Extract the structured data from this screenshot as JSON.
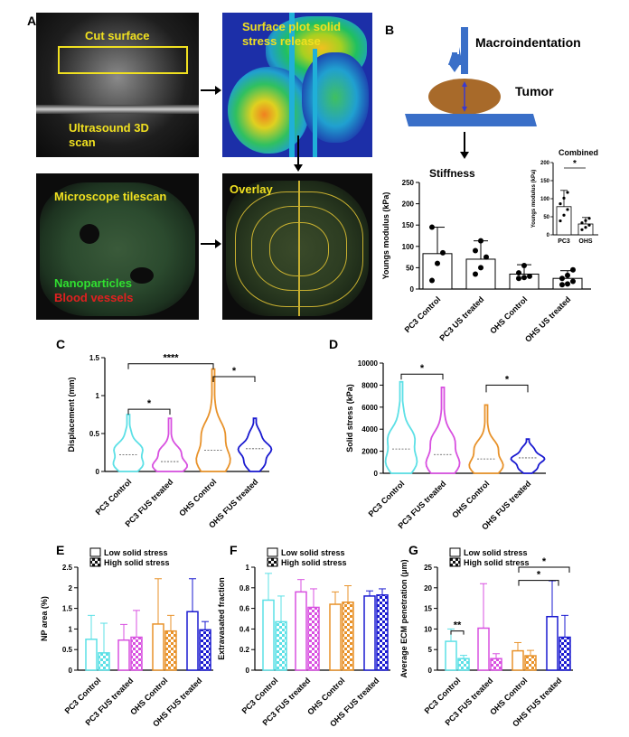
{
  "panelA": {
    "letter": "A",
    "ultrasound": {
      "cut": "Cut surface",
      "scan_line1": "Ultrasound 3D",
      "scan_line2": "scan"
    },
    "surface": {
      "line1": "Surface plot solid",
      "line2": "stress release"
    },
    "microscope": {
      "title": "Microscope tilescan",
      "np": "Nanoparticles",
      "bv": "Blood vessels"
    },
    "overlay": {
      "title": "Overlay"
    }
  },
  "panelB": {
    "letter": "B",
    "macro": "Macroindentation",
    "tumor": "Tumor",
    "stiffness": "Stiffness",
    "combined": "Combined"
  },
  "panelC": {
    "letter": "C"
  },
  "panelD": {
    "letter": "D"
  },
  "panelE": {
    "letter": "E"
  },
  "panelF": {
    "letter": "F"
  },
  "panelG": {
    "letter": "G"
  },
  "colors": {
    "cyan": "#5ce0e6",
    "magenta": "#d850e0",
    "orange": "#e8922a",
    "blue": "#1a1ad0",
    "black": "#111111"
  },
  "chart_data": [
    {
      "id": "B",
      "type": "scatter",
      "ylabel": "Youngs modulus (kPa)",
      "ylim": [
        0,
        250
      ],
      "yticks": [
        0,
        50,
        100,
        150,
        200,
        250
      ],
      "categories": [
        "PC3 Control",
        "PC3 US treated",
        "OHS Control",
        "OHS US treated"
      ],
      "means": [
        83,
        70,
        35,
        25
      ],
      "sd": [
        62,
        43,
        22,
        18
      ],
      "points": [
        [
          20,
          60,
          85,
          145
        ],
        [
          35,
          50,
          75,
          90,
          113
        ],
        [
          25,
          27,
          30,
          38,
          55
        ],
        [
          10,
          12,
          18,
          25,
          32,
          45
        ]
      ],
      "title": "Stiffness",
      "inset": {
        "title": "Combined",
        "ylabel": "Youngs modulus (kPa)",
        "ylim": [
          0,
          200
        ],
        "yticks": [
          0,
          50,
          100,
          150,
          200
        ],
        "categories": [
          "PC3",
          "OHS"
        ],
        "means": [
          78,
          30
        ],
        "sd": [
          45,
          18
        ],
        "significance": "*"
      },
      "significance": []
    },
    {
      "id": "C",
      "type": "violin",
      "ylabel": "Displacement (mm)",
      "ylim": [
        0,
        1.5
      ],
      "yticks": [
        0.0,
        0.5,
        1.0,
        1.5
      ],
      "categories": [
        "PC3 Control",
        "PC3 FUS treated",
        "OHS Control",
        "OHS FUS treated"
      ],
      "medians": [
        0.22,
        0.13,
        0.28,
        0.3
      ],
      "max": [
        0.75,
        0.7,
        1.35,
        0.7
      ],
      "significance": [
        {
          "from": 0,
          "to": 1,
          "label": "*"
        },
        {
          "from": 0,
          "to": 2,
          "label": "****"
        },
        {
          "from": 2,
          "to": 3,
          "label": "*"
        }
      ]
    },
    {
      "id": "D",
      "type": "violin",
      "ylabel": "Solid stress (kPa)",
      "ylim": [
        0,
        10000
      ],
      "yticks": [
        0,
        2000,
        4000,
        6000,
        8000,
        10000
      ],
      "categories": [
        "PC3 Control",
        "PC3 FUS treated",
        "OHS Control",
        "OHS FUS treated"
      ],
      "medians": [
        2200,
        1700,
        1300,
        1400
      ],
      "max": [
        8300,
        7800,
        6200,
        3100
      ],
      "significance": [
        {
          "from": 0,
          "to": 1,
          "label": "*"
        },
        {
          "from": 2,
          "to": 3,
          "label": "*"
        }
      ]
    },
    {
      "id": "E",
      "type": "bar",
      "ylabel": "NP area (%)",
      "ylim": [
        0,
        2.5
      ],
      "yticks": [
        0.0,
        0.5,
        1.0,
        1.5,
        2.0,
        2.5
      ],
      "categories": [
        "PC3 Control",
        "PC3 FUS treated",
        "OHS Control",
        "OHS FUS treated"
      ],
      "series": [
        {
          "name": "Low solid stress",
          "values": [
            0.75,
            0.73,
            1.12,
            1.42
          ],
          "err": [
            0.58,
            0.38,
            1.1,
            0.8
          ]
        },
        {
          "name": "High solid stress",
          "values": [
            0.42,
            0.8,
            0.95,
            0.98
          ],
          "err": [
            0.72,
            0.65,
            0.38,
            0.2
          ]
        }
      ],
      "significance": []
    },
    {
      "id": "F",
      "type": "bar",
      "ylabel": "Extravasated fraction",
      "ylim": [
        0,
        1.0
      ],
      "yticks": [
        0.0,
        0.2,
        0.4,
        0.6,
        0.8,
        1.0
      ],
      "categories": [
        "PC3 Control",
        "PC3 FUS treated",
        "OHS Control",
        "OHS FUS treated"
      ],
      "series": [
        {
          "name": "Low solid stress",
          "values": [
            0.68,
            0.76,
            0.64,
            0.72
          ],
          "err": [
            0.26,
            0.12,
            0.12,
            0.05
          ]
        },
        {
          "name": "High solid stress",
          "values": [
            0.47,
            0.61,
            0.66,
            0.73
          ],
          "err": [
            0.25,
            0.18,
            0.16,
            0.06
          ]
        }
      ],
      "significance": []
    },
    {
      "id": "G",
      "type": "bar",
      "ylabel": "Average ECM penetration (μm)",
      "ylim": [
        0,
        25
      ],
      "yticks": [
        0,
        5,
        10,
        15,
        20,
        25
      ],
      "categories": [
        "PC3 Control",
        "PC3 FUS treated",
        "OHS Control",
        "OHS FUS treated"
      ],
      "series": [
        {
          "name": "Low solid stress",
          "values": [
            7,
            10.2,
            4.7,
            13
          ],
          "err": [
            3,
            10.8,
            2,
            8.7
          ]
        },
        {
          "name": "High solid stress",
          "values": [
            2.8,
            2.8,
            3.5,
            8
          ],
          "err": [
            0.8,
            1.2,
            1.3,
            5.3
          ]
        }
      ],
      "significance": [
        {
          "label": "**",
          "pos": "pc3"
        },
        {
          "label": "*",
          "pos": "ohs1"
        },
        {
          "label": "*",
          "pos": "ohs2"
        }
      ]
    }
  ]
}
